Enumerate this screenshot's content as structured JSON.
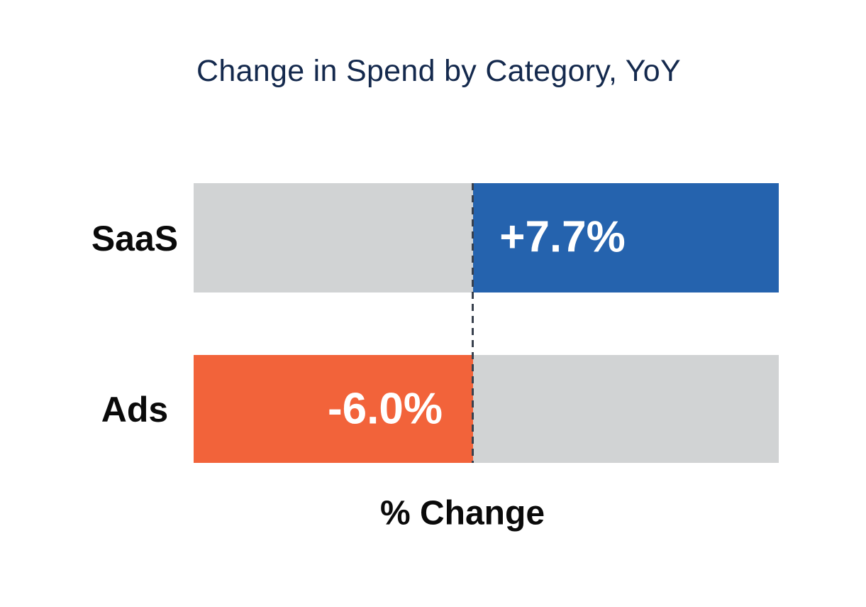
{
  "chart_data": {
    "type": "bar",
    "orientation": "horizontal",
    "title": "Change in Spend by Category, YoY",
    "xlabel": "% Change",
    "ylabel": "",
    "categories": [
      "SaaS",
      "Ads"
    ],
    "values": [
      7.7,
      -6.0
    ],
    "value_labels": [
      "+7.7%",
      "-6.0%"
    ],
    "unit": "percent",
    "baseline": 0,
    "legend": "none",
    "gridlines": false,
    "axis_tick_labels": false,
    "zero_line": {
      "style": "dashed",
      "color": "#39414E"
    },
    "colors": {
      "positive_bar": "#2563AE",
      "negative_bar": "#F2633A",
      "track": "#D1D3D4",
      "title_text": "#14294D",
      "category_text": "#0A0A0A",
      "value_text": "#FFFFFF",
      "background": "#FFFFFF"
    }
  }
}
